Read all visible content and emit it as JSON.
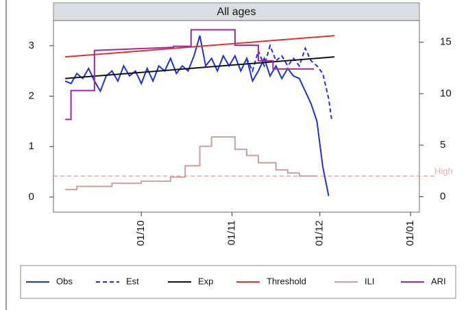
{
  "chart_data": {
    "type": "line",
    "title": "All ages",
    "xlim": [
      0,
      125
    ],
    "ylim": [
      -0.3,
      3.5
    ],
    "y2lim": [
      -1.5,
      17.1
    ],
    "xticks": [
      {
        "value": 30,
        "label": "01/10"
      },
      {
        "value": 61,
        "label": "01/11"
      },
      {
        "value": 91,
        "label": "01/12"
      },
      {
        "value": 122,
        "label": "01/01"
      }
    ],
    "yticks": [
      0,
      1,
      2,
      3
    ],
    "y2ticks": [
      0,
      5,
      10,
      15
    ],
    "reference_line": {
      "value": 2,
      "label": "High",
      "color": "#e0b0b0",
      "axis": "y2"
    },
    "legend": "bottom",
    "series": [
      {
        "name": "Obs",
        "color": "#1f2fd0",
        "style": "solid",
        "x": [
          4,
          6,
          8,
          10,
          12,
          14,
          16,
          18,
          20,
          22,
          24,
          26,
          28,
          30,
          32,
          34,
          36,
          38,
          40,
          42,
          44,
          46,
          48,
          50,
          52,
          54,
          56,
          58,
          60,
          62,
          64,
          66,
          68,
          70,
          72,
          74,
          76,
          78,
          80,
          82,
          84,
          86,
          88,
          90,
          92,
          94
        ],
        "values": [
          2.3,
          2.25,
          2.45,
          2.35,
          2.55,
          2.3,
          2.1,
          2.4,
          2.5,
          2.3,
          2.6,
          2.4,
          2.5,
          2.25,
          2.55,
          2.3,
          2.6,
          2.5,
          2.75,
          2.45,
          2.6,
          2.5,
          2.8,
          3.2,
          2.6,
          2.75,
          2.5,
          2.8,
          2.6,
          2.8,
          2.5,
          2.75,
          2.3,
          2.5,
          2.75,
          2.4,
          2.6,
          2.35,
          2.55,
          2.4,
          2.35,
          2.1,
          1.85,
          1.5,
          0.6,
          0.02
        ]
      },
      {
        "name": "Est",
        "color": "#1f2fd0",
        "style": "dashed",
        "x": [
          66,
          68,
          70,
          72,
          74,
          76,
          78,
          80,
          82,
          84,
          86,
          88,
          90,
          92,
          94,
          95
        ],
        "values": [
          2.75,
          2.5,
          2.9,
          2.6,
          3.0,
          2.7,
          2.8,
          2.6,
          2.75,
          2.6,
          2.95,
          2.7,
          2.6,
          2.45,
          1.95,
          1.55
        ]
      },
      {
        "name": "Exp",
        "color": "#111111",
        "style": "solid",
        "x": [
          4,
          96
        ],
        "values": [
          2.35,
          2.78
        ]
      },
      {
        "name": "Threshold",
        "color": "#e03030",
        "style": "solid",
        "x": [
          4,
          96
        ],
        "values": [
          2.78,
          3.2
        ]
      },
      {
        "name": "ILI",
        "color": "#c8a0a0",
        "style": "solid",
        "axis": "y2",
        "x": [
          4,
          8,
          8,
          20,
          20,
          30,
          30,
          40,
          40,
          45,
          45,
          50,
          50,
          54,
          54,
          62,
          62,
          66,
          66,
          70,
          70,
          76,
          76,
          80,
          80,
          84,
          84,
          90
        ],
        "values": [
          0.7,
          0.7,
          1.0,
          1.0,
          1.3,
          1.3,
          1.5,
          1.5,
          1.9,
          1.9,
          3.0,
          3.0,
          4.9,
          4.9,
          5.8,
          5.8,
          4.6,
          4.6,
          4.0,
          4.0,
          3.3,
          3.3,
          2.6,
          2.6,
          2.3,
          2.3,
          2.0,
          2.0
        ]
      },
      {
        "name": "ARI",
        "color": "#9a2a9a",
        "style": "solid",
        "axis": "y2",
        "x": [
          4,
          6,
          6,
          14,
          14,
          41,
          41,
          47,
          47,
          62,
          62,
          70,
          70,
          75,
          75,
          89
        ],
        "values": [
          7.5,
          7.5,
          10.3,
          10.3,
          14.2,
          14.5,
          14.6,
          14.6,
          16.2,
          16.2,
          14.7,
          14.7,
          13.2,
          13.2,
          12.4,
          12.4
        ]
      }
    ]
  }
}
